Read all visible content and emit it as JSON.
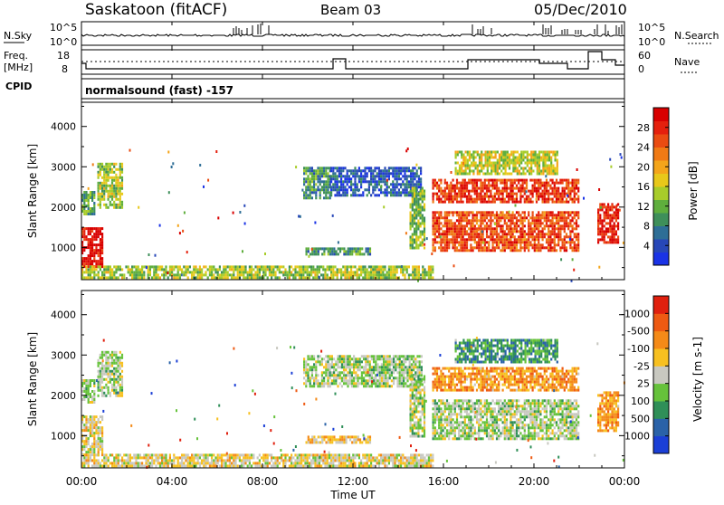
{
  "header": {
    "station": "Saskatoon (fitACF)",
    "beam": "Beam 03",
    "date": "05/Dec/2010"
  },
  "noise_panel": {
    "left_label": "N.Sky",
    "right_label": "N.Search",
    "left_ticks": [
      "10^5",
      "10^0"
    ],
    "right_ticks": [
      "10^5",
      "10^0"
    ]
  },
  "freq_panel": {
    "left_label_line1": "Freq.",
    "left_label_line2": "[MHz]",
    "right_label": "Nave",
    "left_ticks": [
      "18",
      "8"
    ],
    "right_ticks": [
      "60",
      "0"
    ]
  },
  "cpid": {
    "label": "CPID",
    "text": "normalsound (fast) -157"
  },
  "x_axis": {
    "label": "Time UT",
    "ticks": [
      "00:00",
      "04:00",
      "08:00",
      "12:00",
      "16:00",
      "20:00",
      "00:00"
    ]
  },
  "chart_data": [
    {
      "type": "heatmap",
      "name": "power",
      "ylabel": "Slant Range [km]",
      "yticks": [
        1000,
        2000,
        3000,
        4000
      ],
      "ylim": [
        200,
        4600
      ],
      "xlim_hours": [
        0,
        24
      ],
      "colorbar": {
        "label": "Power [dB]",
        "ticks": [
          "4",
          "8",
          "12",
          "16",
          "20",
          "24",
          "28"
        ],
        "colors": [
          "#1a33e6",
          "#2747b8",
          "#2e6e96",
          "#3e8f5a",
          "#5fae3d",
          "#a8cc2a",
          "#e8c81a",
          "#f4a51a",
          "#f07a15",
          "#ea4c12",
          "#e5200d",
          "#d80000"
        ]
      },
      "regions": [
        {
          "t0": 0.0,
          "t1": 0.9,
          "r0": 500,
          "r1": 1500,
          "level": 0.95
        },
        {
          "t0": 0.0,
          "t1": 0.6,
          "r0": 1800,
          "r1": 2400,
          "level": 0.35
        },
        {
          "t0": 0.7,
          "t1": 1.8,
          "r0": 2000,
          "r1": 3100,
          "level": 0.45
        },
        {
          "t0": 0.0,
          "t1": 15.5,
          "r0": 250,
          "r1": 550,
          "level": 0.45
        },
        {
          "t0": 9.8,
          "t1": 11.0,
          "r0": 2200,
          "r1": 3000,
          "level": 0.3
        },
        {
          "t0": 11.0,
          "t1": 15.0,
          "r0": 2300,
          "r1": 3000,
          "level": 0.15
        },
        {
          "t0": 14.5,
          "t1": 15.2,
          "r0": 1000,
          "r1": 2500,
          "level": 0.4
        },
        {
          "t0": 9.9,
          "t1": 12.8,
          "r0": 850,
          "r1": 1000,
          "level": 0.3
        },
        {
          "t0": 15.5,
          "t1": 22.0,
          "r0": 2100,
          "r1": 2700,
          "level": 0.85
        },
        {
          "t0": 15.5,
          "t1": 22.0,
          "r0": 950,
          "r1": 1900,
          "level": 0.8
        },
        {
          "t0": 16.5,
          "t1": 21.0,
          "r0": 2800,
          "r1": 3400,
          "level": 0.5
        },
        {
          "t0": 22.8,
          "t1": 23.7,
          "r0": 1100,
          "r1": 2100,
          "level": 0.9
        }
      ]
    },
    {
      "type": "heatmap",
      "name": "velocity",
      "ylabel": "Slant Range [km]",
      "yticks": [
        1000,
        2000,
        3000,
        4000
      ],
      "ylim": [
        200,
        4600
      ],
      "xlim_hours": [
        0,
        24
      ],
      "colorbar": {
        "label": "Velocity [m s-1]",
        "ticks": [
          "1000",
          "500",
          "100",
          "25",
          "-25",
          "-100",
          "-500",
          "-1000"
        ],
        "colors": [
          "#1b3fd6",
          "#2a62a8",
          "#2f8f58",
          "#66c23b",
          "#c8c8c0",
          "#f7c020",
          "#f48a18",
          "#ee5a12",
          "#e0200e"
        ]
      },
      "regions": [
        {
          "t0": 0.0,
          "t1": 0.9,
          "r0": 500,
          "r1": 1500,
          "level": 0.55
        },
        {
          "t0": 0.0,
          "t1": 0.6,
          "r0": 1800,
          "r1": 2400,
          "level": 0.45
        },
        {
          "t0": 0.7,
          "t1": 1.8,
          "r0": 2000,
          "r1": 3100,
          "level": 0.45
        },
        {
          "t0": 0.0,
          "t1": 15.5,
          "r0": 250,
          "r1": 550,
          "level": 0.55
        },
        {
          "t0": 9.8,
          "t1": 15.0,
          "r0": 2200,
          "r1": 3000,
          "level": 0.45
        },
        {
          "t0": 14.5,
          "t1": 15.2,
          "r0": 1000,
          "r1": 2500,
          "level": 0.45
        },
        {
          "t0": 9.9,
          "t1": 12.8,
          "r0": 850,
          "r1": 1000,
          "level": 0.6
        },
        {
          "t0": 15.5,
          "t1": 22.0,
          "r0": 2100,
          "r1": 2700,
          "level": 0.7
        },
        {
          "t0": 15.5,
          "t1": 22.0,
          "r0": 950,
          "r1": 1900,
          "level": 0.45
        },
        {
          "t0": 16.5,
          "t1": 21.0,
          "r0": 2800,
          "r1": 3400,
          "level": 0.3
        },
        {
          "t0": 22.8,
          "t1": 23.7,
          "r0": 1100,
          "r1": 2100,
          "level": 0.7
        }
      ]
    }
  ]
}
